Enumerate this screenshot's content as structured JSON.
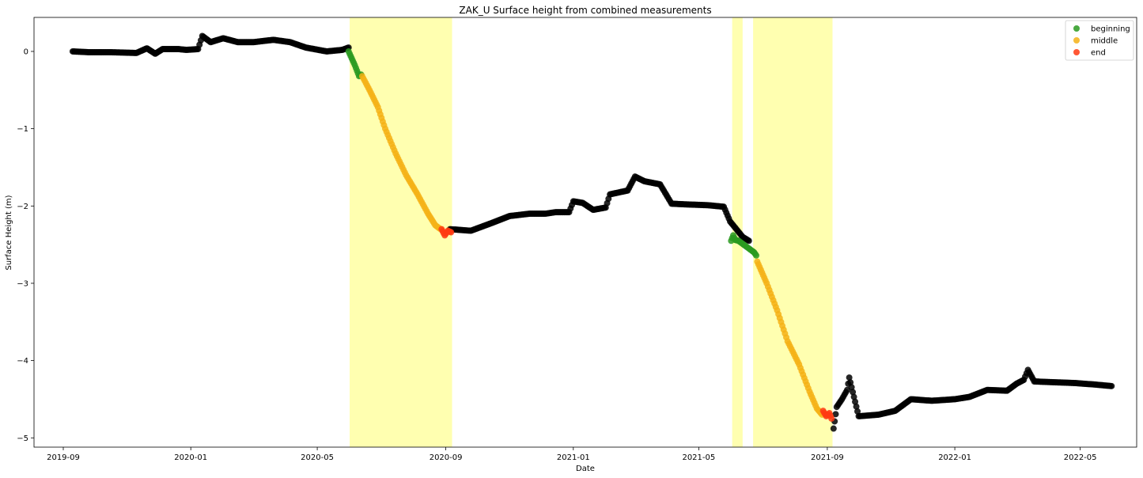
{
  "chart_data": {
    "type": "scatter",
    "title": "ZAK_U Surface height from combined measurements",
    "xlabel": "Date",
    "ylabel": "Surface Height (m)",
    "xlim": [
      "2019-08-04",
      "2022-06-24"
    ],
    "ylim": [
      -5.12,
      0.44
    ],
    "x_ticks": [
      "2019-09",
      "2020-01",
      "2020-05",
      "2020-09",
      "2021-01",
      "2021-05",
      "2021-09",
      "2022-01",
      "2022-05"
    ],
    "y_ticks": [
      0,
      -1,
      -2,
      -3,
      -4,
      -5
    ],
    "y_tick_labels": [
      "0",
      "−1",
      "−2",
      "−3",
      "−4",
      "−5"
    ],
    "grid": false,
    "legend_position": "top-right",
    "shaded_periods": [
      {
        "start": "2020-06-01",
        "end": "2020-09-07",
        "color": "#ffffb0"
      },
      {
        "start": "2021-06-02",
        "end": "2021-06-12",
        "color": "#ffffb0"
      },
      {
        "start": "2021-06-22",
        "end": "2021-09-06",
        "color": "#ffffb0"
      }
    ],
    "series": [
      {
        "name": "",
        "color": "#000000",
        "points": [
          [
            "2019-09-10",
            0.0
          ],
          [
            "2019-09-25",
            -0.01
          ],
          [
            "2019-10-15",
            -0.01
          ],
          [
            "2019-11-10",
            -0.02
          ],
          [
            "2019-11-20",
            0.04
          ],
          [
            "2019-11-28",
            -0.03
          ],
          [
            "2019-12-05",
            0.03
          ],
          [
            "2019-12-20",
            0.03
          ],
          [
            "2019-12-28",
            0.02
          ],
          [
            "2020-01-08",
            0.03
          ],
          [
            "2020-01-12",
            0.2
          ],
          [
            "2020-01-20",
            0.12
          ],
          [
            "2020-02-01",
            0.17
          ],
          [
            "2020-02-15",
            0.12
          ],
          [
            "2020-03-01",
            0.12
          ],
          [
            "2020-03-20",
            0.15
          ],
          [
            "2020-04-05",
            0.12
          ],
          [
            "2020-04-20",
            0.05
          ],
          [
            "2020-05-10",
            0.0
          ],
          [
            "2020-05-25",
            0.02
          ],
          [
            "2020-05-31",
            0.05
          ],
          [
            "2020-09-05",
            -2.3
          ],
          [
            "2020-09-25",
            -2.32
          ],
          [
            "2020-10-15",
            -2.22
          ],
          [
            "2020-11-01",
            -2.13
          ],
          [
            "2020-11-20",
            -2.1
          ],
          [
            "2020-12-05",
            -2.1
          ],
          [
            "2020-12-15",
            -2.08
          ],
          [
            "2020-12-28",
            -2.08
          ],
          [
            "2021-01-01",
            -1.94
          ],
          [
            "2021-01-10",
            -1.96
          ],
          [
            "2021-01-20",
            -2.05
          ],
          [
            "2021-02-01",
            -2.02
          ],
          [
            "2021-02-05",
            -1.85
          ],
          [
            "2021-02-15",
            -1.82
          ],
          [
            "2021-02-22",
            -1.8
          ],
          [
            "2021-03-01",
            -1.62
          ],
          [
            "2021-03-10",
            -1.68
          ],
          [
            "2021-03-25",
            -1.72
          ],
          [
            "2021-04-05",
            -1.97
          ],
          [
            "2021-04-20",
            -1.98
          ],
          [
            "2021-05-10",
            -1.99
          ],
          [
            "2021-05-25",
            -2.01
          ],
          [
            "2021-05-31",
            -2.2
          ],
          [
            "2021-06-12",
            -2.4
          ],
          [
            "2021-06-18",
            -2.45
          ],
          [
            "2021-09-07",
            -4.88
          ],
          [
            "2021-09-10",
            -4.6
          ],
          [
            "2021-09-15",
            -4.5
          ],
          [
            "2021-09-20",
            -4.38
          ],
          [
            "2021-09-22",
            -4.22
          ],
          [
            "2021-10-01",
            -4.72
          ],
          [
            "2021-10-20",
            -4.7
          ],
          [
            "2021-11-05",
            -4.65
          ],
          [
            "2021-11-15",
            -4.55
          ],
          [
            "2021-11-20",
            -4.5
          ],
          [
            "2021-12-10",
            -4.52
          ],
          [
            "2022-01-01",
            -4.5
          ],
          [
            "2022-01-15",
            -4.47
          ],
          [
            "2022-02-01",
            -4.38
          ],
          [
            "2022-02-20",
            -4.39
          ],
          [
            "2022-03-01",
            -4.3
          ],
          [
            "2022-03-08",
            -4.25
          ],
          [
            "2022-03-12",
            -4.12
          ],
          [
            "2022-03-18",
            -4.27
          ],
          [
            "2022-04-05",
            -4.28
          ],
          [
            "2022-04-25",
            -4.29
          ],
          [
            "2022-05-15",
            -4.31
          ],
          [
            "2022-05-31",
            -4.33
          ]
        ]
      },
      {
        "name": "beginning",
        "color": "#2a9a20",
        "points": [
          [
            "2020-05-31",
            0.0
          ],
          [
            "2020-06-02",
            -0.06
          ],
          [
            "2020-06-04",
            -0.12
          ],
          [
            "2020-06-06",
            -0.18
          ],
          [
            "2020-06-08",
            -0.25
          ],
          [
            "2020-06-10",
            -0.32
          ],
          [
            "2020-06-12",
            -0.3
          ],
          [
            "2021-06-01",
            -2.45
          ],
          [
            "2021-06-03",
            -2.38
          ],
          [
            "2021-06-05",
            -2.44
          ],
          [
            "2021-06-08",
            -2.45
          ],
          [
            "2021-06-21",
            -2.58
          ],
          [
            "2021-06-23",
            -2.6
          ],
          [
            "2021-06-25",
            -2.64
          ]
        ]
      },
      {
        "name": "middle",
        "color": "#f5b216",
        "points": [
          [
            "2020-06-13",
            -0.32
          ],
          [
            "2020-06-20",
            -0.5
          ],
          [
            "2020-06-28",
            -0.72
          ],
          [
            "2020-07-05",
            -1.0
          ],
          [
            "2020-07-15",
            -1.32
          ],
          [
            "2020-07-25",
            -1.6
          ],
          [
            "2020-08-05",
            -1.85
          ],
          [
            "2020-08-15",
            -2.1
          ],
          [
            "2020-08-22",
            -2.25
          ],
          [
            "2020-08-27",
            -2.3
          ],
          [
            "2021-06-26",
            -2.72
          ],
          [
            "2021-07-05",
            -3.0
          ],
          [
            "2021-07-15",
            -3.35
          ],
          [
            "2021-07-25",
            -3.75
          ],
          [
            "2021-08-05",
            -4.05
          ],
          [
            "2021-08-15",
            -4.4
          ],
          [
            "2021-08-22",
            -4.62
          ],
          [
            "2021-08-27",
            -4.7
          ]
        ]
      },
      {
        "name": "end",
        "color": "#ff3a12",
        "points": [
          [
            "2020-08-28",
            -2.3
          ],
          [
            "2020-08-31",
            -2.38
          ],
          [
            "2020-09-03",
            -2.32
          ],
          [
            "2020-09-06",
            -2.34
          ],
          [
            "2021-08-28",
            -4.65
          ],
          [
            "2021-08-31",
            -4.72
          ],
          [
            "2021-09-03",
            -4.68
          ],
          [
            "2021-09-05",
            -4.75
          ]
        ]
      }
    ]
  }
}
